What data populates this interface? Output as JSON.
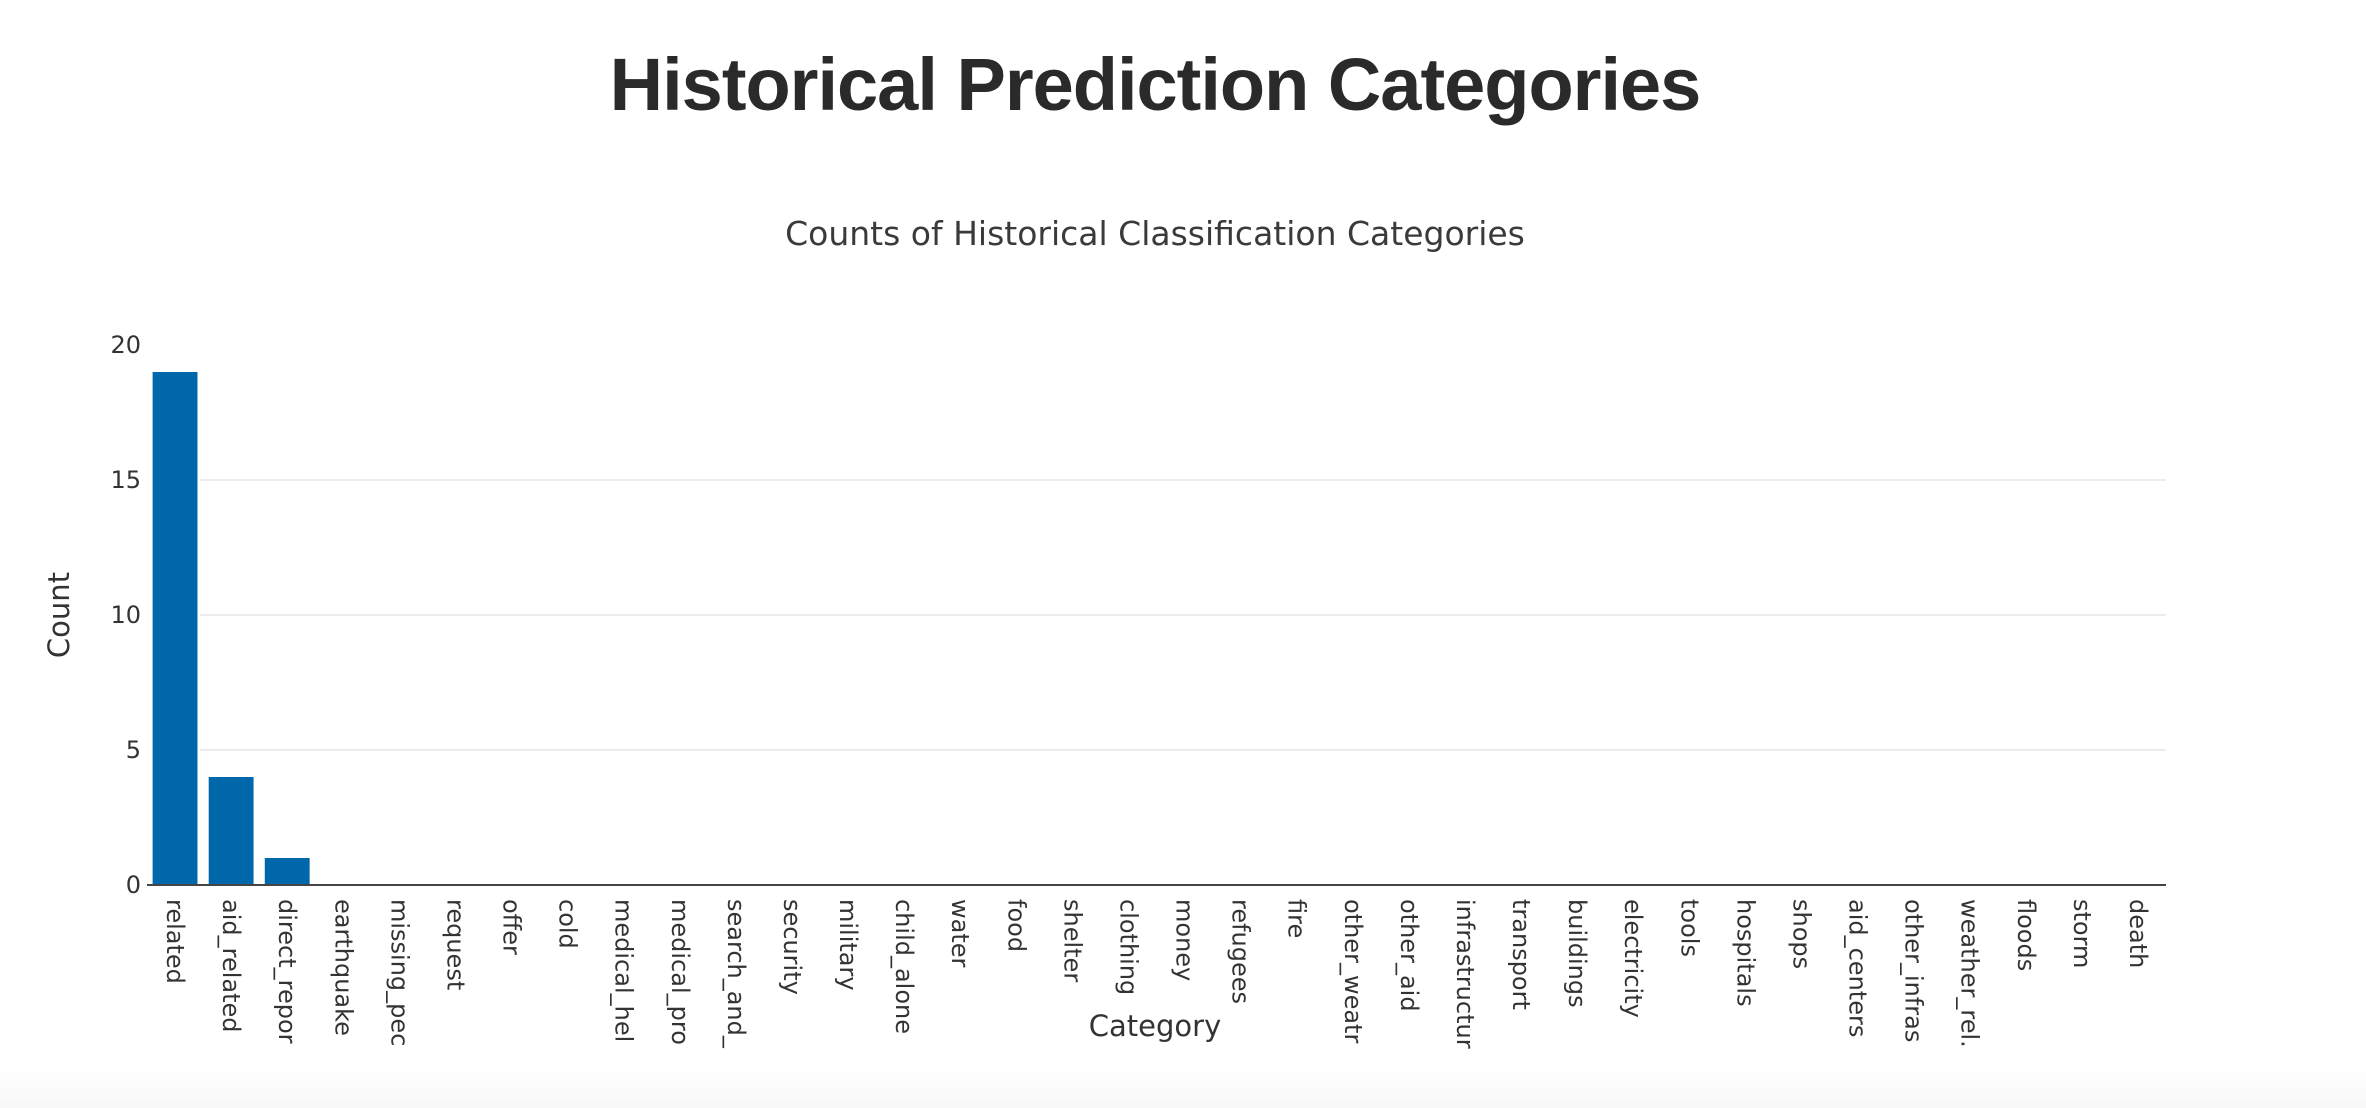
{
  "page": {
    "title": "Historical Prediction Categories"
  },
  "chart_data": {
    "type": "bar",
    "title": "Counts of Historical Classification Categories",
    "xlabel": "Category",
    "ylabel": "Count",
    "ylim": [
      0,
      20
    ],
    "yticks": [
      0,
      5,
      10,
      15,
      20
    ],
    "grid": true,
    "bar_color": "#0068AA",
    "categories": [
      "related",
      "aid_related",
      "direct_repor",
      "earthquake",
      "missing_pec",
      "request",
      "offer",
      "cold",
      "medical_hel",
      "medical_pro",
      "search_and_",
      "security",
      "military",
      "child_alone",
      "water",
      "food",
      "shelter",
      "clothing",
      "money",
      "refugees",
      "fire",
      "other_weatr",
      "other_aid",
      "infrastructur",
      "transport",
      "buildings",
      "electricity",
      "tools",
      "hospitals",
      "shops",
      "aid_centers",
      "other_infras",
      "weather_rel.",
      "floods",
      "storm",
      "death"
    ],
    "values": [
      19,
      4,
      1,
      0,
      0,
      0,
      0,
      0,
      0,
      0,
      0,
      0,
      0,
      0,
      0,
      0,
      0,
      0,
      0,
      0,
      0,
      0,
      0,
      0,
      0,
      0,
      0,
      0,
      0,
      0,
      0,
      0,
      0,
      0,
      0,
      0
    ]
  }
}
